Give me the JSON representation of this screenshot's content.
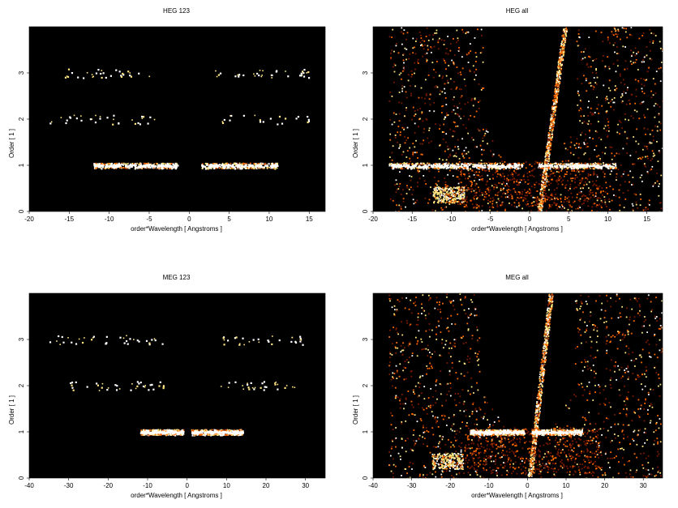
{
  "chart_data": [
    {
      "type": "heatmap",
      "title": "HEG 123",
      "xlabel": "order*Wavelength [ Angstroms ]",
      "ylabel": "Order [ 1 ]",
      "xlim": [
        -20,
        17
      ],
      "ylim": [
        0,
        4
      ],
      "xticks": [
        -20,
        -15,
        -10,
        -5,
        0,
        5,
        10,
        15
      ],
      "yticks": [
        0,
        1,
        2,
        3
      ],
      "background": "#000000",
      "bands": [
        {
          "order": 1,
          "x_min": -12,
          "x_max": 11,
          "gap": [
            -1.5,
            1.5
          ],
          "intensity": "high"
        },
        {
          "order": 2,
          "x_min": -18,
          "x_max": 15,
          "gap": [
            -4,
            4
          ],
          "intensity": "low"
        },
        {
          "order": 3,
          "x_min": -17,
          "x_max": 15,
          "gap": [
            -4,
            3
          ],
          "intensity": "low"
        }
      ]
    },
    {
      "type": "heatmap",
      "title": "HEG all",
      "xlabel": "order*Wavelength [ Angstroms ]",
      "ylabel": "Order [ 1 ]",
      "xlim": [
        -20,
        17
      ],
      "ylim": [
        0,
        4
      ],
      "xticks": [
        -20,
        -15,
        -10,
        -5,
        0,
        5,
        10,
        15
      ],
      "yticks": [
        0,
        1,
        2,
        3
      ],
      "background": "#000000",
      "bands": [
        {
          "order": 1,
          "x_min": -18,
          "x_max": 11,
          "gap": [
            -1,
            1
          ],
          "intensity": "high"
        }
      ],
      "zeroth_order_streak": {
        "x_at_order_0": 1.2,
        "x_at_order_4": 4.5
      },
      "noise_wedge_x": [
        -18,
        17
      ]
    },
    {
      "type": "heatmap",
      "title": "MEG 123",
      "xlabel": "order*Wavelength [ Angstroms ]",
      "ylabel": "Order [ 1 ]",
      "xlim": [
        -40,
        35
      ],
      "ylim": [
        0,
        4
      ],
      "xticks": [
        -40,
        -30,
        -20,
        -10,
        0,
        10,
        20,
        30
      ],
      "yticks": [
        0,
        1,
        2,
        3
      ],
      "background": "#000000",
      "bands": [
        {
          "order": 1,
          "x_min": -12,
          "x_max": 14,
          "gap": [
            -1,
            1
          ],
          "intensity": "high"
        },
        {
          "order": 2,
          "x_min": -30,
          "x_max": 28,
          "gap": [
            -6,
            6
          ],
          "intensity": "low"
        },
        {
          "order": 3,
          "x_min": -35,
          "x_max": 30,
          "gap": [
            -6,
            5
          ],
          "intensity": "low"
        }
      ]
    },
    {
      "type": "heatmap",
      "title": "MEG all",
      "xlabel": "order*Wavelength [ Angstroms ]",
      "ylabel": "Order [ 1 ]",
      "xlim": [
        -40,
        35
      ],
      "ylim": [
        0,
        4
      ],
      "xticks": [
        -40,
        -30,
        -20,
        -10,
        0,
        10,
        20,
        30
      ],
      "yticks": [
        0,
        1,
        2,
        3
      ],
      "background": "#000000",
      "bands": [
        {
          "order": 1,
          "x_min": -15,
          "x_max": 14,
          "gap": [
            -1,
            1
          ],
          "intensity": "high"
        }
      ],
      "zeroth_order_streak": {
        "x_at_order_0": 0.5,
        "x_at_order_4": 6
      },
      "noise_wedge_x": [
        -36,
        35
      ]
    }
  ],
  "colors": {
    "hot_low": "#7a1a00",
    "hot_mid": "#ff6a00",
    "hot_high": "#ffe680",
    "hot_max": "#ffffff"
  }
}
